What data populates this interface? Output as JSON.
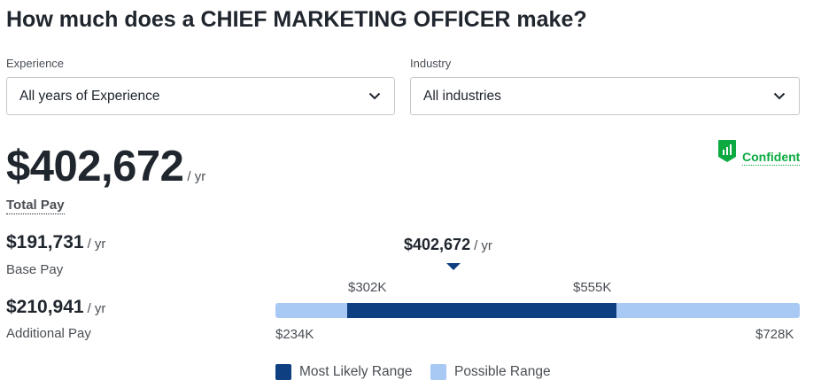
{
  "title": "How much does a CHIEF MARKETING OFFICER make?",
  "filters": {
    "experience": {
      "label": "Experience",
      "value": "All years of Experience"
    },
    "industry": {
      "label": "Industry",
      "value": "All industries"
    }
  },
  "confidence": {
    "label": "Confident",
    "icon": "signal-bars-icon",
    "color": "#0caa41"
  },
  "total_pay": {
    "amount": "$402,672",
    "unit": "/ yr",
    "label": "Total Pay"
  },
  "base_pay": {
    "amount": "$191,731",
    "unit": "/ yr",
    "label": "Base Pay"
  },
  "additional_pay": {
    "amount": "$210,941",
    "unit": "/ yr",
    "label": "Additional Pay"
  },
  "range": {
    "marker": {
      "amount": "$402,672",
      "unit": "/ yr",
      "value": 402672
    },
    "possible_min": {
      "label": "$234K",
      "value": 234000
    },
    "possible_max": {
      "label": "$728K",
      "value": 728000
    },
    "likely_min": {
      "label": "$302K",
      "value": 302000
    },
    "likely_max": {
      "label": "$555K",
      "value": 555000
    },
    "colors": {
      "likely": "#0d3f81",
      "possible": "#a9c9f5"
    }
  },
  "legend": {
    "likely": "Most Likely Range",
    "possible": "Possible Range"
  }
}
